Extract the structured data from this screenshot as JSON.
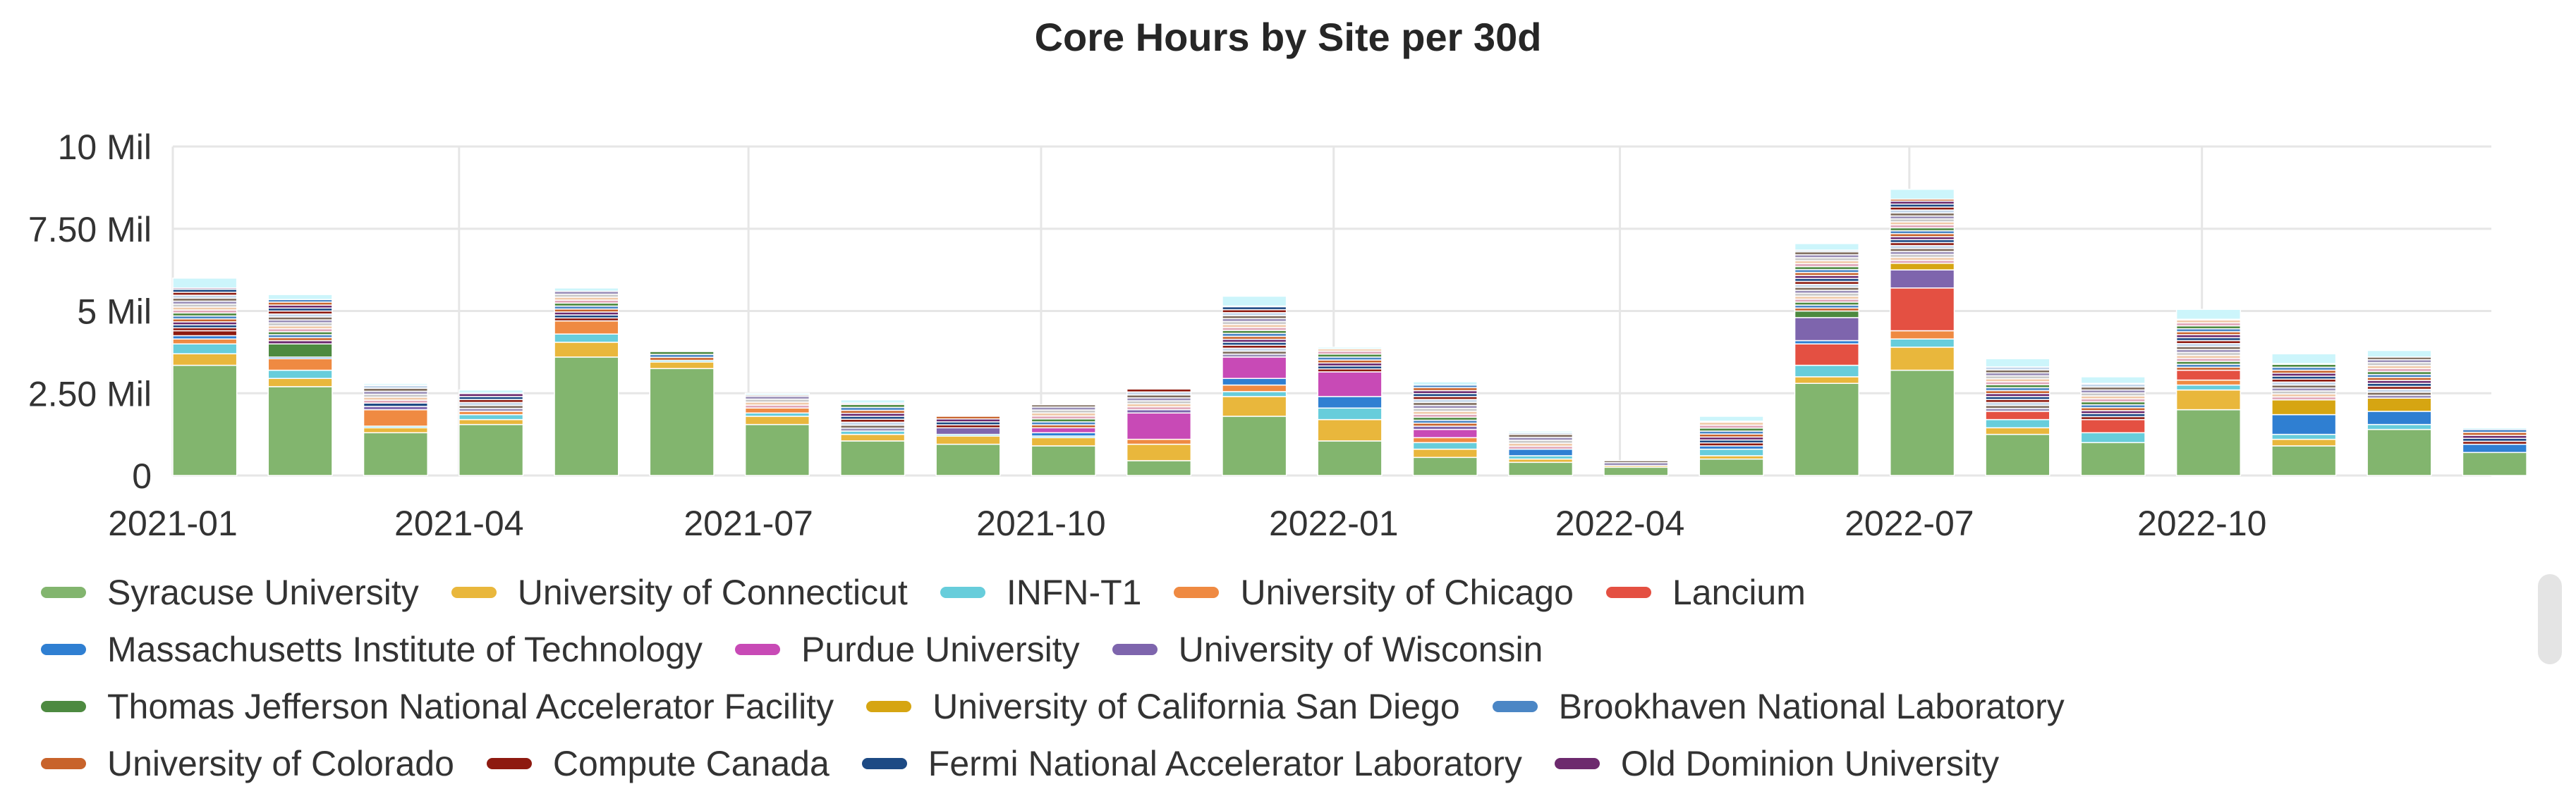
{
  "chart_data": {
    "type": "bar",
    "stacked": true,
    "title": "Core Hours by Site per 30d",
    "xlabel": "",
    "ylabel": "",
    "ylim": [
      0,
      10000000
    ],
    "y_ticks": [
      {
        "value": 0,
        "label": "0"
      },
      {
        "value": 2500000,
        "label": "2.50 Mil"
      },
      {
        "value": 5000000,
        "label": "5 Mil"
      },
      {
        "value": 7500000,
        "label": "7.50 Mil"
      },
      {
        "value": 10000000,
        "label": "10 Mil"
      }
    ],
    "x_ticks": [
      {
        "value": "2021-01",
        "label": "2021-01"
      },
      {
        "value": "2021-04",
        "label": "2021-04"
      },
      {
        "value": "2021-07",
        "label": "2021-07"
      },
      {
        "value": "2021-10",
        "label": "2021-10"
      },
      {
        "value": "2022-01",
        "label": "2022-01"
      },
      {
        "value": "2022-04",
        "label": "2022-04"
      },
      {
        "value": "2022-07",
        "label": "2022-07"
      },
      {
        "value": "2022-10",
        "label": "2022-10"
      }
    ],
    "x_range": [
      "2021-01-01",
      "2022-12-31"
    ],
    "grid": true,
    "legend_position": "bottom",
    "categories": [
      "2021-01-01",
      "2021-01-31",
      "2021-03-02",
      "2021-04-01",
      "2021-05-01",
      "2021-05-31",
      "2021-06-30",
      "2021-07-30",
      "2021-08-29",
      "2021-09-28",
      "2021-10-28",
      "2021-11-27",
      "2021-12-27",
      "2022-01-26",
      "2022-02-25",
      "2022-03-27",
      "2022-04-26",
      "2022-05-26",
      "2022-06-25",
      "2022-07-25",
      "2022-08-24",
      "2022-09-23",
      "2022-10-23",
      "2022-11-22",
      "2022-12-22"
    ],
    "series": [
      {
        "name": "Syracuse University",
        "color": "#82b56e",
        "values": [
          3350000,
          2700000,
          1300000,
          1550000,
          3600000,
          3250000,
          1550000,
          1050000,
          950000,
          900000,
          450000,
          1800000,
          1050000,
          550000,
          400000,
          250000,
          500000,
          2800000,
          3200000,
          1250000,
          1000000,
          2000000,
          900000,
          1400000,
          700000
        ]
      },
      {
        "name": "University of Connecticut",
        "color": "#e9b73c",
        "values": [
          350000,
          250000,
          150000,
          150000,
          450000,
          200000,
          250000,
          200000,
          250000,
          250000,
          500000,
          600000,
          650000,
          250000,
          100000,
          50000,
          100000,
          200000,
          700000,
          200000,
          0,
          600000,
          200000,
          0,
          0
        ]
      },
      {
        "name": "INFN-T1",
        "color": "#67cddb",
        "values": [
          300000,
          250000,
          50000,
          150000,
          250000,
          50000,
          100000,
          100000,
          50000,
          50000,
          0,
          150000,
          350000,
          200000,
          100000,
          0,
          200000,
          350000,
          250000,
          250000,
          300000,
          150000,
          150000,
          150000,
          0
        ]
      },
      {
        "name": "University of Chicago",
        "color": "#ef8a42",
        "values": [
          150000,
          350000,
          500000,
          100000,
          400000,
          0,
          150000,
          0,
          0,
          0,
          150000,
          200000,
          0,
          150000,
          0,
          0,
          0,
          0,
          250000,
          0,
          0,
          150000,
          0,
          0,
          0
        ]
      },
      {
        "name": "Lancium",
        "color": "#e45042",
        "values": [
          0,
          0,
          0,
          0,
          0,
          0,
          0,
          0,
          0,
          0,
          0,
          0,
          0,
          0,
          0,
          0,
          0,
          650000,
          1300000,
          250000,
          400000,
          300000,
          0,
          0,
          0
        ]
      },
      {
        "name": "Massachusetts Institute of Technology",
        "color": "#2f7fd2",
        "values": [
          100000,
          50000,
          0,
          0,
          0,
          0,
          0,
          0,
          0,
          100000,
          0,
          200000,
          350000,
          0,
          200000,
          0,
          100000,
          100000,
          0,
          0,
          0,
          0,
          600000,
          400000,
          250000
        ]
      },
      {
        "name": "Purdue University",
        "color": "#c84ab6",
        "values": [
          0,
          0,
          0,
          0,
          0,
          0,
          0,
          0,
          0,
          150000,
          800000,
          650000,
          750000,
          250000,
          0,
          0,
          0,
          0,
          0,
          0,
          0,
          0,
          0,
          0,
          0
        ]
      },
      {
        "name": "University of Wisconsin",
        "color": "#7e65ad",
        "values": [
          0,
          0,
          100000,
          0,
          0,
          0,
          0,
          0,
          200000,
          0,
          100000,
          0,
          0,
          100000,
          0,
          0,
          0,
          700000,
          550000,
          0,
          0,
          0,
          0,
          0,
          0
        ]
      },
      {
        "name": "Thomas Jefferson National Accelerator Facility",
        "color": "#4d8a40",
        "values": [
          0,
          400000,
          0,
          0,
          0,
          0,
          0,
          0,
          0,
          0,
          0,
          0,
          0,
          0,
          0,
          0,
          0,
          200000,
          0,
          0,
          0,
          0,
          0,
          0,
          0
        ]
      },
      {
        "name": "University of California San Diego",
        "color": "#d6a512",
        "values": [
          0,
          0,
          0,
          0,
          0,
          0,
          0,
          0,
          0,
          0,
          0,
          0,
          0,
          0,
          0,
          0,
          0,
          0,
          200000,
          0,
          0,
          0,
          450000,
          400000,
          0
        ]
      },
      {
        "name": "Brookhaven National Laboratory",
        "color": "#4b86c5",
        "values": [
          0,
          0,
          0,
          0,
          0,
          0,
          0,
          0,
          0,
          0,
          0,
          0,
          0,
          0,
          0,
          0,
          0,
          0,
          0,
          0,
          0,
          0,
          0,
          0,
          0
        ]
      },
      {
        "name": "University of Colorado",
        "color": "#c8632b",
        "values": [
          0,
          0,
          0,
          0,
          0,
          0,
          0,
          0,
          0,
          0,
          0,
          0,
          0,
          0,
          0,
          0,
          0,
          0,
          0,
          0,
          0,
          0,
          0,
          0,
          0
        ]
      },
      {
        "name": "Compute Canada",
        "color": "#8e1a10",
        "values": [
          0,
          0,
          0,
          0,
          0,
          0,
          0,
          0,
          0,
          0,
          0,
          0,
          0,
          0,
          0,
          0,
          0,
          0,
          0,
          0,
          0,
          0,
          0,
          0,
          0
        ]
      },
      {
        "name": "Fermi National Accelerator Laboratory",
        "color": "#1d4a84",
        "values": [
          0,
          0,
          0,
          0,
          0,
          0,
          0,
          0,
          0,
          0,
          0,
          0,
          0,
          0,
          0,
          0,
          0,
          0,
          0,
          0,
          0,
          0,
          0,
          0,
          0
        ]
      },
      {
        "name": "Old Dominion University",
        "color": "#6d2a6e",
        "values": [
          0,
          0,
          0,
          0,
          0,
          0,
          0,
          0,
          0,
          0,
          0,
          0,
          0,
          0,
          0,
          0,
          0,
          0,
          0,
          0,
          0,
          0,
          0,
          0,
          0
        ]
      }
    ],
    "other_segments": {
      "palette": [
        "#8e1a10",
        "#1d4a84",
        "#6d2a6e",
        "#c8632b",
        "#4b86c5",
        "#4d8a40",
        "#e0a6b9",
        "#f0c9a8",
        "#c9c9c9",
        "#9a8fb8",
        "#7f6d5e",
        "#c4d6ea"
      ],
      "top_color": "#ccf5fb",
      "values": [
        [
          150000,
          0,
          0,
          0,
          0,
          0,
          0,
          0,
          0,
          0,
          0,
          0,
          0,
          0,
          0,
          0,
          0,
          0,
          0,
          0,
          0,
          0,
          0,
          0,
          0
        ],
        [
          0,
          0,
          100000,
          0,
          0,
          0,
          0,
          0,
          0,
          0,
          0,
          0,
          0,
          0,
          0,
          0,
          0,
          0,
          0,
          0,
          0,
          0,
          0,
          0,
          0
        ],
        [
          0,
          100000,
          0,
          0,
          0,
          0,
          0,
          0,
          0,
          0,
          0,
          0,
          0,
          0,
          0,
          0,
          0,
          0,
          0,
          0,
          0,
          0,
          0,
          0,
          0
        ],
        [
          0,
          0,
          0,
          0,
          0,
          0,
          0,
          0,
          0,
          0,
          0,
          0,
          0,
          0,
          0,
          0,
          0,
          0,
          0,
          0,
          0,
          0,
          0,
          0,
          0
        ]
      ],
      "rest_values": [
        1300000,
        1250000,
        550000,
        550000,
        900000,
        300000,
        400000,
        850000,
        350000,
        700000,
        650000,
        1550000,
        700000,
        1250000,
        500000,
        150000,
        750000,
        1850000,
        1950000,
        1350000,
        1100000,
        1550000,
        1100000,
        1250000,
        450000
      ],
      "top_values": [
        300000,
        150000,
        50000,
        100000,
        100000,
        0,
        50000,
        100000,
        0,
        0,
        0,
        300000,
        50000,
        100000,
        50000,
        0,
        150000,
        200000,
        300000,
        250000,
        200000,
        300000,
        300000,
        200000,
        50000
      ]
    }
  }
}
